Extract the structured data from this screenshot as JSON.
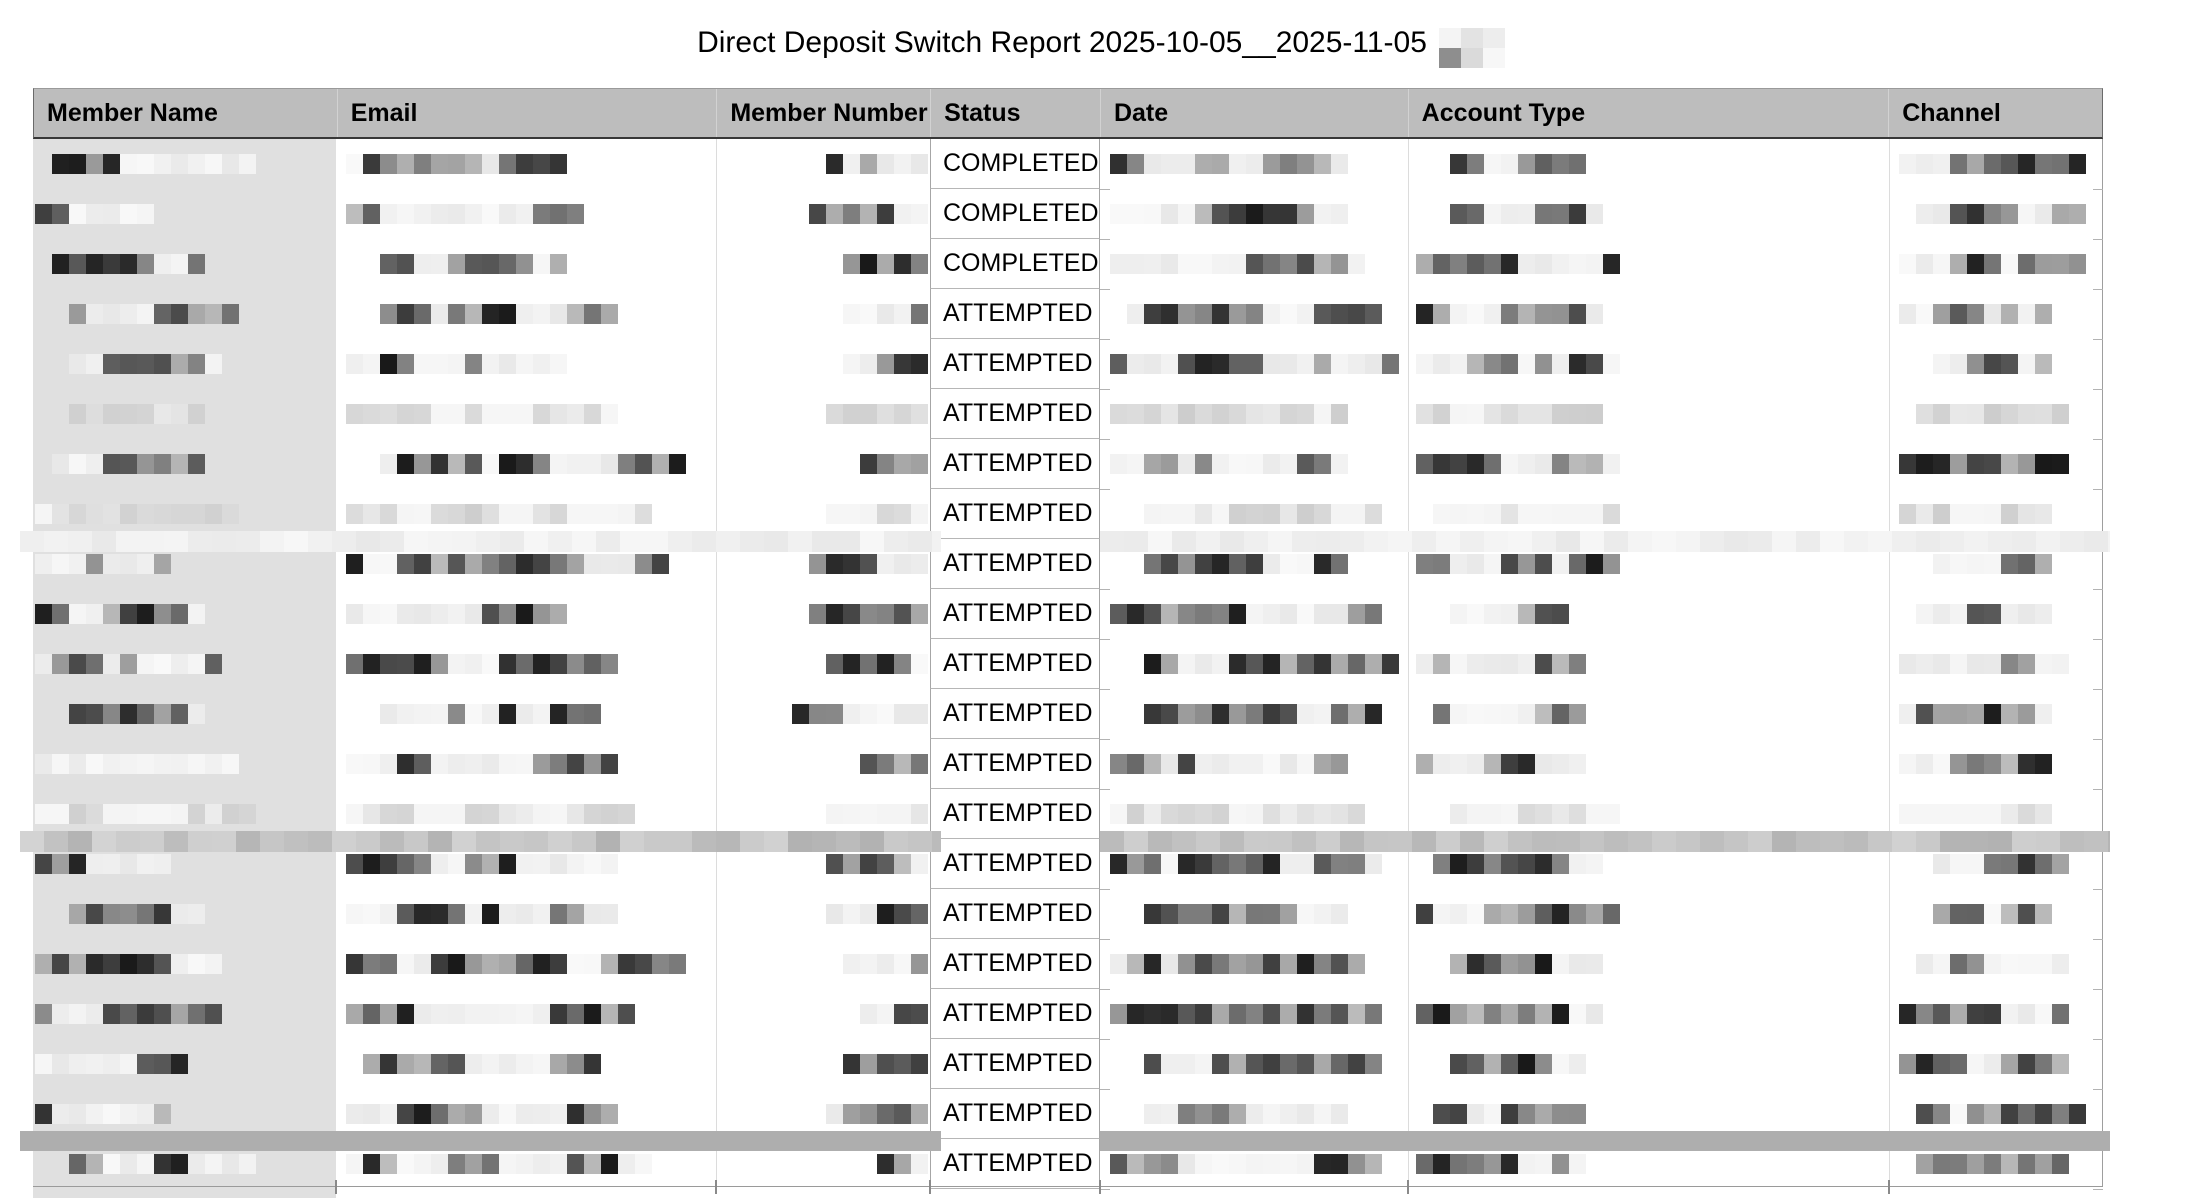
{
  "page": {
    "title": "Direct Deposit Switch Report 2025-10-05__2025-11-05",
    "title_suffix_redacted": true
  },
  "table": {
    "columns": [
      {
        "label": "Member Name"
      },
      {
        "label": "Email"
      },
      {
        "label": "Member Number"
      },
      {
        "label": "Status"
      },
      {
        "label": "Date"
      },
      {
        "label": "Account Type"
      },
      {
        "label": "Channel"
      }
    ],
    "redacted_columns": [
      "Member Name",
      "Email",
      "Member Number",
      "Date",
      "Account Type",
      "Channel"
    ],
    "redaction_style": "pixelated-mosaic",
    "rows": [
      {
        "status": "COMPLETED",
        "tone": "normal"
      },
      {
        "status": "COMPLETED",
        "tone": "normal"
      },
      {
        "status": "COMPLETED",
        "tone": "normal"
      },
      {
        "status": "ATTEMPTED",
        "tone": "normal"
      },
      {
        "status": "ATTEMPTED",
        "tone": "normal"
      },
      {
        "status": "ATTEMPTED",
        "tone": "light"
      },
      {
        "status": "ATTEMPTED",
        "tone": "normal"
      },
      {
        "status": "ATTEMPTED",
        "tone": "light"
      },
      {
        "status": "ATTEMPTED",
        "tone": "normal"
      },
      {
        "status": "ATTEMPTED",
        "tone": "normal"
      },
      {
        "status": "ATTEMPTED",
        "tone": "normal"
      },
      {
        "status": "ATTEMPTED",
        "tone": "normal"
      },
      {
        "status": "ATTEMPTED",
        "tone": "normal"
      },
      {
        "status": "ATTEMPTED",
        "tone": "light"
      },
      {
        "status": "ATTEMPTED",
        "tone": "normal"
      },
      {
        "status": "ATTEMPTED",
        "tone": "normal"
      },
      {
        "status": "ATTEMPTED",
        "tone": "normal"
      },
      {
        "status": "ATTEMPTED",
        "tone": "normal"
      },
      {
        "status": "ATTEMPTED",
        "tone": "normal"
      },
      {
        "status": "ATTEMPTED",
        "tone": "normal"
      },
      {
        "status": "ATTEMPTED",
        "tone": "normal"
      }
    ],
    "partial_row_visible": true,
    "redaction_stripes": [
      {
        "tone": "faint"
      },
      {
        "tone": "medium"
      },
      {
        "tone": "solid"
      }
    ]
  },
  "colors": {
    "header_bg": "#bdbdbd",
    "name_column_bg": "#e0e0e0",
    "status_cell_border": "#a6a6a6",
    "stripe_solid": "#aeaeae",
    "title_text": "#000000"
  }
}
